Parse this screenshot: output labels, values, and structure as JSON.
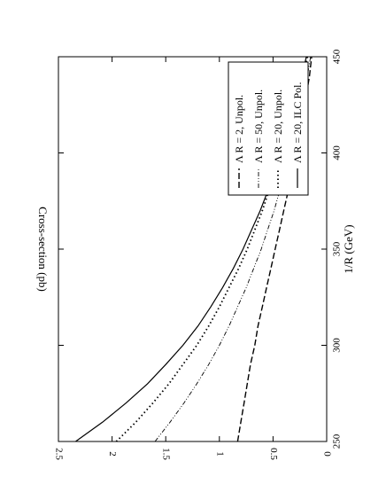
{
  "chart_data": {
    "type": "line",
    "orientation": "rotated-90-ccw",
    "title": "",
    "xlabel": "1/R (GeV)",
    "ylabel": "Cross-section (pb)",
    "xlim": [
      250,
      450
    ],
    "ylim": [
      0,
      2.5
    ],
    "x_ticks": [
      250,
      300,
      350,
      400,
      450
    ],
    "y_ticks": [
      0,
      0.5,
      1,
      1.5,
      2,
      2.5
    ],
    "x_tick_labels": [
      "250",
      "300",
      "350",
      "400",
      "450"
    ],
    "y_tick_labels": [
      "0",
      "0.5",
      "1",
      "1.5",
      "2",
      "2.5"
    ],
    "grid": false,
    "legend_placement": "top-right",
    "series": [
      {
        "name": "Λ R = 20, ILC Pol.",
        "style": "solid",
        "x": [
          250,
          260,
          270,
          280,
          290,
          300,
          310,
          320,
          330,
          340,
          350,
          360,
          370,
          380,
          390,
          400,
          410,
          420,
          430,
          440,
          450
        ],
        "y": [
          2.34,
          2.09,
          1.87,
          1.67,
          1.5,
          1.34,
          1.2,
          1.08,
          0.97,
          0.87,
          0.78,
          0.7,
          0.62,
          0.55,
          0.49,
          0.43,
          0.38,
          0.33,
          0.28,
          0.23,
          0.19
        ]
      },
      {
        "name": "Λ R = 20, Unpol.",
        "style": "dotted",
        "x": [
          250,
          260,
          270,
          280,
          290,
          300,
          310,
          320,
          330,
          340,
          350,
          360,
          370,
          380,
          390,
          400,
          410,
          420,
          430,
          440,
          450
        ],
        "y": [
          1.96,
          1.78,
          1.62,
          1.47,
          1.34,
          1.21,
          1.1,
          1.0,
          0.91,
          0.82,
          0.74,
          0.67,
          0.6,
          0.54,
          0.48,
          0.42,
          0.37,
          0.32,
          0.27,
          0.22,
          0.18
        ]
      },
      {
        "name": "Λ R = 50, Unpol.",
        "style": "dash-dot",
        "x": [
          250,
          260,
          270,
          280,
          290,
          300,
          310,
          320,
          330,
          340,
          350,
          360,
          370,
          380,
          390,
          400,
          410,
          420,
          430,
          440,
          450
        ],
        "y": [
          1.6,
          1.46,
          1.33,
          1.21,
          1.1,
          1.0,
          0.91,
          0.83,
          0.75,
          0.68,
          0.61,
          0.55,
          0.49,
          0.44,
          0.39,
          0.34,
          0.3,
          0.26,
          0.22,
          0.18,
          0.15
        ]
      },
      {
        "name": "Λ R = 2,   Unpol.",
        "style": "dashed",
        "x": [
          250,
          260,
          270,
          280,
          290,
          300,
          310,
          320,
          330,
          340,
          350,
          360,
          370,
          380,
          390,
          400,
          410,
          420,
          430,
          440,
          450
        ],
        "y": [
          0.83,
          0.8,
          0.77,
          0.74,
          0.71,
          0.67,
          0.64,
          0.6,
          0.56,
          0.52,
          0.48,
          0.44,
          0.4,
          0.36,
          0.32,
          0.28,
          0.25,
          0.22,
          0.19,
          0.16,
          0.14
        ]
      }
    ]
  }
}
